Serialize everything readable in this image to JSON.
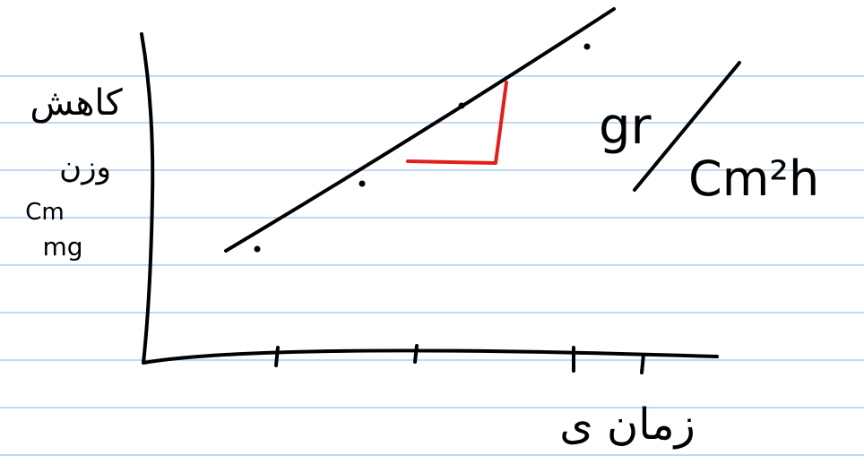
{
  "y_label": [
    "کاهش",
    "وزن",
    "Cm",
    "mg"
  ],
  "x_label": "زمان ی",
  "unit": {
    "numerator": "gr",
    "denominator": "Cm²h"
  }
}
